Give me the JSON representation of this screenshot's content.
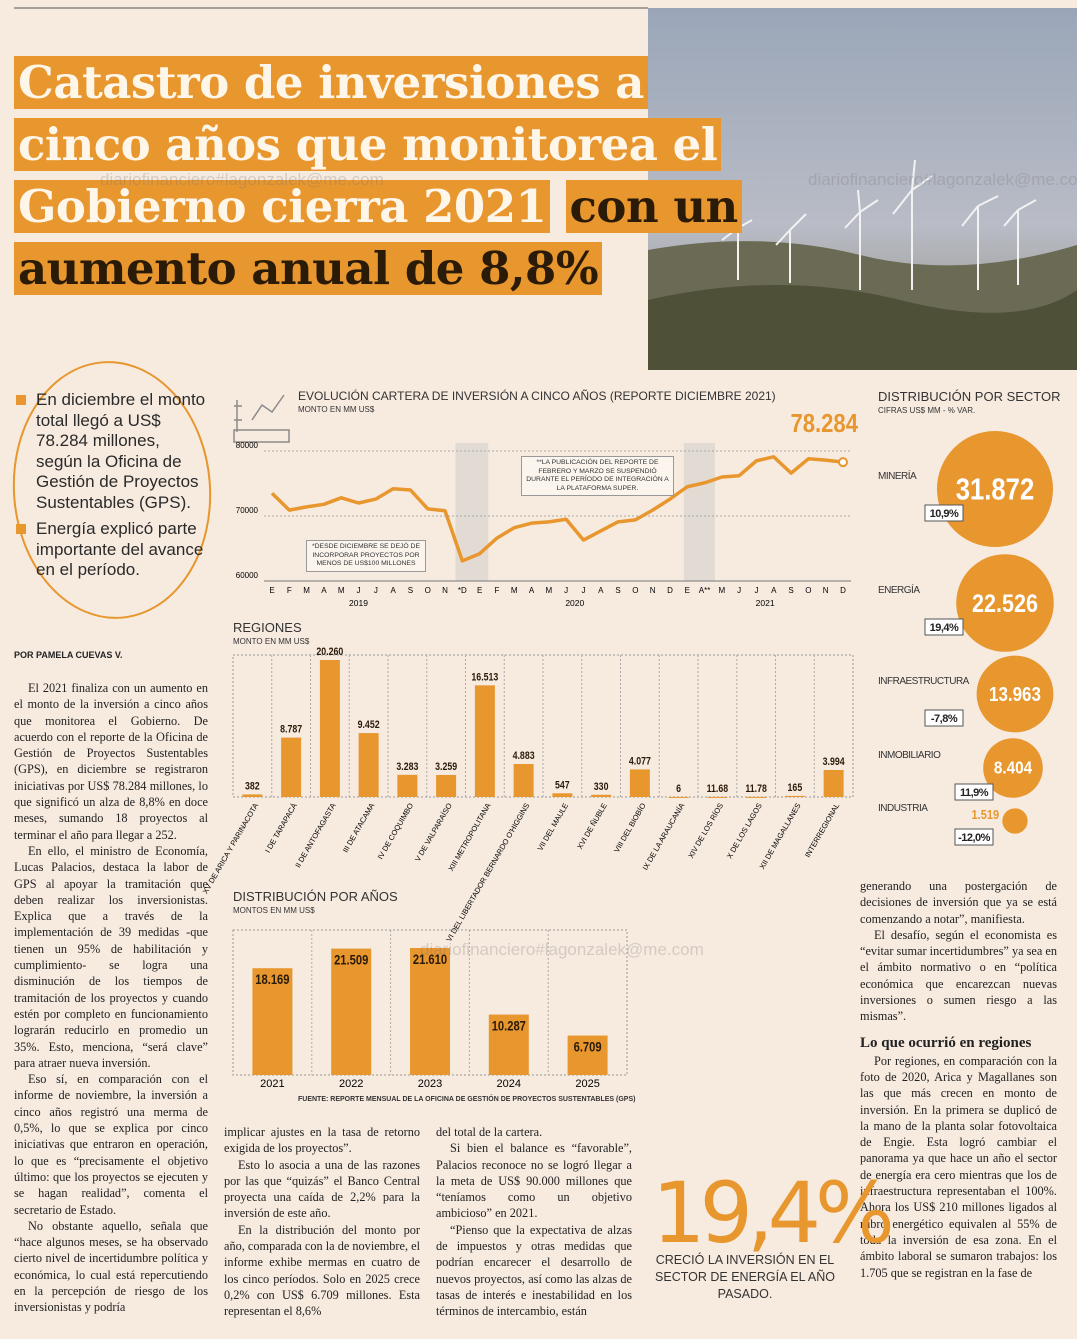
{
  "headline": {
    "light": "Catastro de inversiones a cinco años que monitorea el Gobierno cierra 2021",
    "dark": "con un aumento anual de 8,8%"
  },
  "watermark": "diariofinanciero#lagonzalek@me.com",
  "bullets": [
    "En diciembre el monto total llegó a US$ 78.284 millones, según la Oficina de Gestión de Proyectos Sustentables (GPS).",
    "Energía explicó parte importante del avance en el período."
  ],
  "byline": "POR PAMELA CUEVAS V.",
  "body": {
    "col1": [
      "El 2021 finaliza con un aumento en el monto de la inversión a cinco años que monitorea el Gobierno. De acuerdo con el reporte de la Oficina de Gestión de Proyectos Sustentables (GPS), en diciembre se registraron iniciativas por US$ 78.284 millones, lo que significó un alza de 8,8% en doce meses, sumando 18 proyectos al terminar el año para llegar a 252.",
      "En ello, el ministro de Economía, Lucas Palacios, destaca la labor de GPS al apoyar la tramitación que deben realizar los inversionistas. Explica que a través de la implementación de 39 medidas -que tienen un 95% de habilitación y cumplimiento- se logra una disminución de los tiempos de tramitación de los proyectos y cuando estén por completo en funcionamiento lograrán reducirlo en promedio un 35%. Esto, menciona, “será clave” para atraer nueva inversión.",
      "Eso sí, en comparación con el informe de noviembre, la inversión a cinco años registró una merma de 0,5%, lo que se explica por cinco iniciativas que entraron en operación, lo que es “precisamente el objetivo último: que los proyectos se ejecuten y se hagan realidad”, comenta el secretario de Estado.",
      "No obstante aquello, señala que “hace algunos meses, se ha observado cierto nivel de incertidumbre política y económica, lo cual está repercutiendo en la percepción de riesgo de los inversionistas y podría"
    ],
    "col2": [
      "implicar ajustes en la tasa de retorno exigida de los proyectos”.",
      "Esto lo asocia a una de las razones por las que “quizás” el Banco Central proyecta una caída de 2,2% para la inversión de este año.",
      "En la distribución del monto por año, comparada con la de noviembre, el informe exhibe mermas en cuatro de los cinco períodos. Solo en 2025 crece 0,2% con US$ 6.709 millones. Esta representan el 8,6%"
    ],
    "col3": [
      "del total de la cartera.",
      "Si bien el balance es “favorable”, Palacios reconoce no se logró llegar a la meta de US$ 90.000 millones que “teníamos como un objetivo ambicioso” en 2021.",
      "“Pienso que la expectativa de alzas de impuestos y otras medidas que podrían encarecer el desarrollo de nuevos proyectos, así como las alzas de tasas de interés e inestabilidad en los términos de intercambio, están"
    ],
    "col4a": [
      "generando una postergación de decisiones de inversión que ya se está comenzando a notar”, manifiesta.",
      "El desafío, según el economista es “evitar sumar incertidumbres” ya sea en el ámbito normativo o en “política económica que encarezcan nuevas inversiones o sumen riesgo a las mismas”."
    ],
    "subhead": "Lo que ocurrió en regiones",
    "col4b": [
      "Por regiones, en comparación con la foto de 2020, Arica y Magallanes son las que más crecen en monto de inversión. En la primera se duplicó de la mano de la planta solar fotovoltaica de Engie. Esta logró cambiar el panorama ya que hace un año el sector de energía era cero mientras que los de infraestructura representaban el 100%. Ahora los US$ 210 millones ligados al rubro energético equivalen al 55% de toda la inversión de esa zona. En el ámbito laboral se sumaron trabajos: los 1.705 que se registran en la fase de"
    ]
  },
  "highlight": {
    "figure": "19,4%",
    "text": "CRECIÓ LA INVERSIÓN EN EL SECTOR DE ENERGÍA  EL AÑO PASADO."
  },
  "source": "FUENTE: REPORTE MENSUAL DE LA OFICINA DE GESTIÓN DE PROYECTOS SUSTENTABLES (GPS)",
  "chart_data": [
    {
      "type": "line",
      "title": "EVOLUCIÓN CARTERA DE INVERSIÓN A CINCO AÑOS (REPORTE DICIEMBRE 2021)",
      "subtitle": "MONTO EN MM US$",
      "color": "#e8962e",
      "categories": [
        "E",
        "F",
        "M",
        "A",
        "M",
        "J",
        "J",
        "A",
        "S",
        "O",
        "N",
        "*D",
        "E",
        "F",
        "M",
        "A",
        "M",
        "J",
        "J",
        "A",
        "S",
        "O",
        "N",
        "D",
        "E",
        "A**",
        "M",
        "J",
        "J",
        "A",
        "S",
        "O",
        "N",
        "D"
      ],
      "x_groups": [
        "2019",
        "2020",
        "2021"
      ],
      "values": [
        73500,
        70900,
        71400,
        71800,
        72800,
        72000,
        72600,
        74200,
        74000,
        71100,
        70800,
        63100,
        64200,
        66600,
        68200,
        68900,
        69100,
        69500,
        66300,
        67700,
        69100,
        69400,
        70900,
        72600,
        74500,
        75100,
        76000,
        76200,
        78500,
        79100,
        76600,
        78800,
        78600,
        78284
      ],
      "value_labels": [
        null,
        null,
        null,
        null,
        null,
        null,
        null,
        null,
        null,
        null,
        null,
        null,
        null,
        null,
        null,
        null,
        null,
        null,
        null,
        null,
        null,
        null,
        null,
        null,
        null,
        null,
        null,
        null,
        null,
        null,
        null,
        null,
        null,
        "78.284"
      ],
      "ylim": [
        60000,
        80000
      ],
      "yticks": [
        60000,
        70000,
        80000
      ],
      "annotations": [
        "**LA PUBLICACIÓN DEL REPORTE DE FEBRERO Y MARZO SE SUSPENDIÓ DURANTE EL PERÍODO DE INTEGRACIÓN A LA PLATAFORMA SUPER.",
        "*DESDE DICIEMBRE SE DEJÓ DE INCORPORAR PROYECTOS POR MENOS DE US$100 MILLONES"
      ]
    },
    {
      "type": "bar",
      "title": "REGIONES",
      "subtitle": "MONTO EN MM US$",
      "color": "#e8962e",
      "categories": [
        "XV DE ARICA Y PARINACOTA",
        "I DE TARAPACÁ",
        "II DE ANTOFAGASTA",
        "III DE ATACAMA",
        "IV DE COQUIMBO",
        "V DE VALPARAÍSO",
        "XIII METROPOLITANA",
        "VI DEL LIBERTADOR BERNARDO O'HIGGINS",
        "VII DEL MAULE",
        "XVI DE ÑUBLE",
        "VIII DEL BIOBÍO",
        "IX DE LA ARAUCANÍA",
        "XIV DE LOS RÍOS",
        "X DE LOS LAGOS",
        "XII DE MAGALLANES",
        "INTERREGIONAL"
      ],
      "values": [
        382,
        8787,
        20260,
        9452,
        3283,
        3259,
        16513,
        4883,
        547,
        330,
        4077,
        6,
        11.68,
        11.78,
        165,
        3994
      ],
      "value_labels": [
        "382",
        "8.787",
        "20.260",
        "9.452",
        "3.283",
        "3.259",
        "16.513",
        "4.883",
        "547",
        "330",
        "4.077",
        "6",
        "11.68",
        "11.78",
        "165",
        "3.994"
      ],
      "ylim": [
        0,
        20260
      ]
    },
    {
      "type": "bar",
      "title": "DISTRIBUCIÓN POR AÑOS",
      "subtitle": "MONTOS EN MM US$",
      "color": "#e8962e",
      "categories": [
        "2021",
        "2022",
        "2023",
        "2024",
        "2025"
      ],
      "values": [
        18169,
        21509,
        21610,
        10287,
        6709
      ],
      "value_labels": [
        "18.169",
        "21.509",
        "21.610",
        "10.287",
        "6.709"
      ],
      "ylim": [
        0,
        21610
      ]
    },
    {
      "type": "bubble",
      "title": "DISTRIBUCIÓN  POR SECTOR",
      "subtitle": "CIFRAS US$ MM - % VAR.",
      "color": "#e8962e",
      "categories": [
        "MINERÍA",
        "ENERGÍA",
        "INFRAESTRUCTURA",
        "INMOBILIARIO",
        "INDUSTRIA"
      ],
      "values": [
        31872,
        22526,
        13963,
        8404,
        1519
      ],
      "value_labels": [
        "31.872",
        "22.526",
        "13.963",
        "8.404",
        "1.519"
      ],
      "changes": [
        10.9,
        19.4,
        -7.8,
        11.9,
        -12.0
      ],
      "change_labels": [
        "10,9%",
        "19,4%",
        "-7,8%",
        "11,9%",
        "-12,0%"
      ]
    }
  ]
}
